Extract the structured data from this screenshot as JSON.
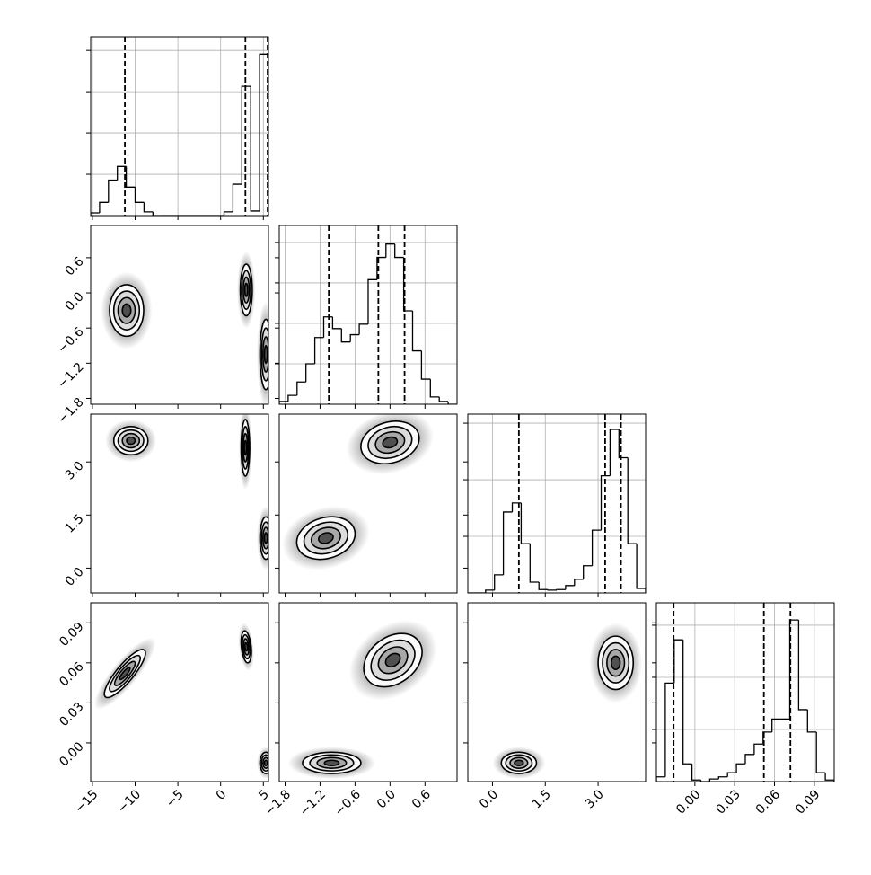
{
  "chart_data": {
    "type": "corner",
    "color": "#000000",
    "grid": true,
    "params": [
      {
        "lim": [
          -15.2,
          5.6
        ],
        "ticks": [
          {
            "value": -15,
            "label": "−15"
          },
          {
            "value": -10,
            "label": "−10"
          },
          {
            "value": -5,
            "label": "−5"
          },
          0,
          5
        ],
        "quantiles": [
          -11.2,
          2.9,
          5.5
        ],
        "hist": {
          "bins": [
            -15.2,
            -14.16,
            -13.12,
            -12.08,
            -11.04,
            -10.0,
            -8.96,
            -7.92,
            -6.88,
            -5.84,
            -4.8,
            -3.76,
            -2.72,
            -1.68,
            -0.64,
            0.4,
            1.44,
            2.48,
            3.52,
            4.56,
            5.6
          ],
          "counts": [
            65,
            320,
            860,
            1190,
            690,
            320,
            90,
            0,
            0,
            0,
            0,
            0,
            0,
            0,
            0,
            90,
            760,
            3130,
            110,
            3910
          ],
          "ylim": [
            0,
            4330
          ],
          "yticks": [
            1000,
            2000,
            3000,
            4000
          ]
        }
      },
      {
        "lim": [
          -1.9,
          1.15
        ],
        "ticks": [
          {
            "value": -1.8,
            "label": "−1.8"
          },
          {
            "value": -1.2,
            "label": "−1.2"
          },
          {
            "value": -0.6,
            "label": "−0.6"
          },
          {
            "value": 0,
            "label": "0.0"
          },
          {
            "value": 0.6,
            "label": "0.6"
          }
        ],
        "quantiles": [
          -1.05,
          -0.2,
          0.25
        ],
        "hist": {
          "bins": [
            -1.9,
            -1.7475,
            -1.595,
            -1.4425,
            -1.29,
            -1.1375,
            -0.985,
            -0.8325,
            -0.68,
            -0.5275,
            -0.375,
            -0.2225,
            -0.07,
            0.0825,
            0.235,
            0.3875,
            0.54,
            0.6925,
            0.845,
            0.9975,
            1.15
          ],
          "counts": [
            70,
            220,
            550,
            1000,
            1650,
            2160,
            1870,
            1540,
            1720,
            1980,
            3080,
            3630,
            3960,
            3630,
            2310,
            1320,
            620,
            180,
            70,
            0
          ],
          "ylim": [
            0,
            4420
          ],
          "yticks": [
            1000,
            2000,
            3000,
            4000
          ]
        }
      },
      {
        "lim": [
          -0.7,
          4.35
        ],
        "ticks": [
          {
            "value": 0,
            "label": "0.0"
          },
          {
            "value": 1.5,
            "label": "1.5"
          },
          {
            "value": 3,
            "label": "3.0"
          }
        ],
        "quantiles": [
          0.75,
          3.2,
          3.65
        ],
        "hist": {
          "bins": [
            -0.7,
            -0.4475,
            -0.195,
            0.0575,
            0.31,
            0.5625,
            0.815,
            1.0675,
            1.32,
            1.5725,
            1.825,
            2.0775,
            2.33,
            2.5825,
            2.835,
            3.0875,
            3.34,
            3.5925,
            3.845,
            4.0975,
            4.35
          ],
          "counts": [
            0,
            0,
            50,
            320,
            1430,
            1590,
            870,
            190,
            60,
            50,
            60,
            130,
            240,
            480,
            1110,
            2070,
            2890,
            2390,
            870,
            80
          ],
          "ylim": [
            0,
            3160
          ],
          "yticks": [
            1000,
            2000,
            3000
          ]
        }
      },
      {
        "lim": [
          -0.029,
          0.105
        ],
        "ticks": [
          {
            "value": 0,
            "label": "0.00"
          },
          {
            "value": 0.03,
            "label": "0.03"
          },
          {
            "value": 0.06,
            "label": "0.06"
          },
          {
            "value": 0.09,
            "label": "0.09"
          }
        ],
        "quantiles": [
          -0.016,
          0.052,
          0.072
        ],
        "hist": {
          "bins": [
            -0.029,
            -0.0223,
            -0.0156,
            -0.0089,
            -0.0022,
            0.0045,
            0.0112,
            0.0179,
            0.0246,
            0.0313,
            0.038,
            0.0447,
            0.0514,
            0.0581,
            0.0648,
            0.0715,
            0.0782,
            0.0849,
            0.0916,
            0.0983,
            0.105
          ],
          "counts": [
            90,
            1890,
            2720,
            340,
            30,
            0,
            50,
            90,
            170,
            340,
            520,
            720,
            950,
            1200,
            1200,
            3100,
            1380,
            950,
            170,
            30
          ],
          "ylim": [
            0,
            3430
          ],
          "yticks": [
            1000,
            2000,
            3000
          ]
        }
      }
    ],
    "panels": [
      {
        "x": 0,
        "y": 1,
        "blobs": [
          {
            "center": [
              -11,
              -0.3
            ],
            "spread": [
              1.0,
              0.22
            ],
            "corr": 0
          },
          {
            "center": [
              3,
              0.05
            ],
            "spread": [
              0.35,
              0.22
            ],
            "corr": 0
          },
          {
            "center": [
              5.3,
              -1.05
            ],
            "spread": [
              0.35,
              0.3
            ],
            "corr": 0
          }
        ]
      },
      {
        "x": 0,
        "y": 2,
        "blobs": [
          {
            "center": [
              -10.5,
              3.6
            ],
            "spread": [
              1.0,
              0.2
            ],
            "corr": 0
          },
          {
            "center": [
              2.9,
              3.4
            ],
            "spread": [
              0.25,
              0.4
            ],
            "corr": 0
          },
          {
            "center": [
              5.3,
              0.85
            ],
            "spread": [
              0.35,
              0.3
            ],
            "corr": 0
          }
        ]
      },
      {
        "x": 0,
        "y": 3,
        "blobs": [
          {
            "center": [
              -11.2,
              0.052
            ],
            "spread": [
              1.2,
              0.009
            ],
            "corr": 0.85
          },
          {
            "center": [
              3,
              0.072
            ],
            "spread": [
              0.3,
              0.006
            ],
            "corr": -0.3
          },
          {
            "center": [
              5.3,
              -0.015
            ],
            "spread": [
              0.35,
              0.004
            ],
            "corr": 0
          }
        ]
      },
      {
        "x": 1,
        "y": 2,
        "blobs": [
          {
            "center": [
              0.0,
              3.55
            ],
            "spread": [
              0.25,
              0.3
            ],
            "corr": 0.2
          },
          {
            "center": [
              -1.1,
              0.85
            ],
            "spread": [
              0.25,
              0.3
            ],
            "corr": 0.2
          }
        ]
      },
      {
        "x": 1,
        "y": 3,
        "blobs": [
          {
            "center": [
              -1.0,
              -0.015
            ],
            "spread": [
              0.25,
              0.004
            ],
            "corr": 0
          },
          {
            "center": [
              0.05,
              0.062
            ],
            "spread": [
              0.25,
              0.01
            ],
            "corr": 0.3
          }
        ]
      },
      {
        "x": 2,
        "y": 3,
        "blobs": [
          {
            "center": [
              0.75,
              -0.015
            ],
            "spread": [
              0.25,
              0.004
            ],
            "corr": 0
          },
          {
            "center": [
              3.5,
              0.06
            ],
            "spread": [
              0.25,
              0.01
            ],
            "corr": 0
          }
        ]
      }
    ]
  }
}
